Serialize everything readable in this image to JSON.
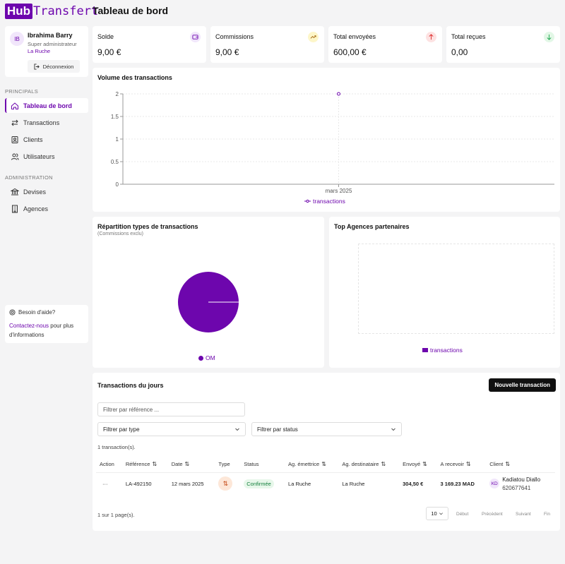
{
  "app": {
    "logo_hub": "Hub",
    "logo_rest": "Transfert",
    "page_title": "Tableau de bord"
  },
  "user": {
    "initials": "IB",
    "name": "Ibrahima Barry",
    "role": "Super administrateur",
    "org": "La Ruche",
    "logout_label": "Déconnexion"
  },
  "sidebar": {
    "section_principal": "PRINCIPALS",
    "section_admin": "ADMINISTRATION",
    "items": [
      {
        "label": "Tableau de bord",
        "icon": "home-icon"
      },
      {
        "label": "Transactions",
        "icon": "arrows-icon"
      },
      {
        "label": "Clients",
        "icon": "contact-icon"
      },
      {
        "label": "Utilisateurs",
        "icon": "users-icon"
      },
      {
        "label": "Devises",
        "icon": "bank-icon"
      },
      {
        "label": "Agences",
        "icon": "building-icon"
      }
    ],
    "help_title": "Besoin d'aide?",
    "help_link": "Contactez-nous",
    "help_text": " pour plus d'informations"
  },
  "stats": [
    {
      "label": "Solde",
      "value": "9,00 €",
      "icon": "wallet-icon",
      "color": "#f1e6fb",
      "fg": "#6d06ad"
    },
    {
      "label": "Commissions",
      "value": "9,00 €",
      "icon": "trend-up-icon",
      "color": "#fdf6c9",
      "fg": "#a16207"
    },
    {
      "label": "Total envoyées",
      "value": "600,00 €",
      "icon": "arrow-up-icon",
      "color": "#fde2e2",
      "fg": "#dc2626"
    },
    {
      "label": "Total reçues",
      "value": "0,00",
      "icon": "arrow-down-icon",
      "color": "#e2f7e6",
      "fg": "#16a34a"
    }
  ],
  "volume_chart": {
    "title": "Volume des transactions",
    "chart_data": {
      "type": "line",
      "categories": [
        "mars 2025"
      ],
      "series": [
        {
          "name": "transactions",
          "values": [
            2
          ]
        }
      ],
      "ylim": [
        0,
        2
      ],
      "yticks": [
        "0",
        "0.5",
        "1",
        "1.5",
        "2"
      ],
      "title": "Volume des transactions",
      "legend": "bottom"
    }
  },
  "pie_chart": {
    "title": "Répartition types de transactions",
    "subtitle": "(Commissions exclu)",
    "chart_data": {
      "type": "pie",
      "labels": [
        "OM"
      ],
      "values": [
        100
      ],
      "colors": [
        "#6d06ad"
      ]
    }
  },
  "agencies_chart": {
    "title": "Top Agences partenaires",
    "chart_data": {
      "type": "bar",
      "categories": [],
      "series": [
        {
          "name": "transactions",
          "values": []
        }
      ]
    }
  },
  "transactions": {
    "title": "Transactions du jours",
    "new_button": "Nouvelle transaction",
    "filter_ref_placeholder": "Filtrer par référence ...",
    "filter_type": "Filtrer par type",
    "filter_status": "Filtrer par status",
    "count": "1 transaction(s).",
    "columns": [
      "Action",
      "Référence",
      "Date",
      "Type",
      "Status",
      "Ag. émettrice",
      "Ag. destinataire",
      "Envoyé",
      "A recevoir",
      "Client"
    ],
    "rows": [
      {
        "action": "···",
        "ref": "LA-492150",
        "date": "12 mars 2025",
        "type": "⇅",
        "status": "Confirmée",
        "ag_from": "La Ruche",
        "ag_to": "La Ruche",
        "sent": "304,50 €",
        "receive": "3 169.23 MAD",
        "client_initials": "KD",
        "client_name": "Kadiatou Diallo",
        "client_phone": "620677641"
      }
    ],
    "pager_info": "1 sur 1 page(s).",
    "page_size": "10",
    "btn_first": "Début",
    "btn_prev": "Précédent",
    "btn_next": "Suivant",
    "btn_last": "Fin"
  }
}
